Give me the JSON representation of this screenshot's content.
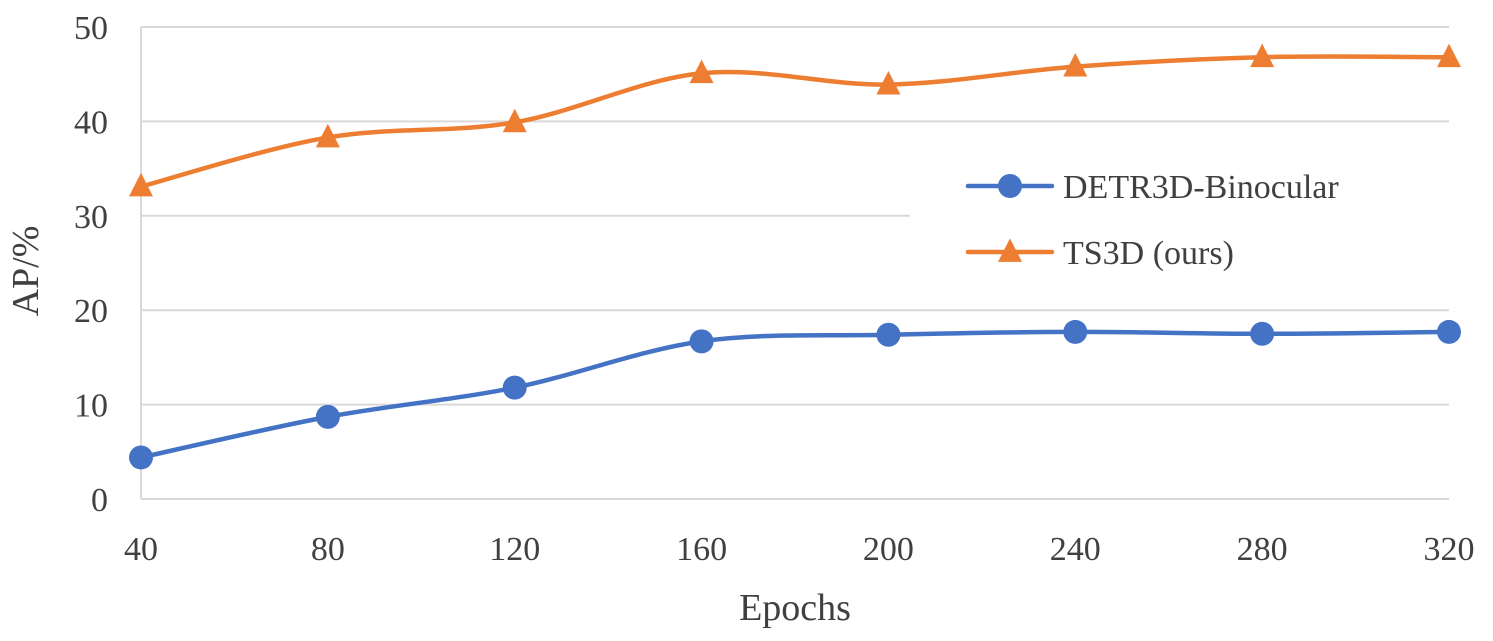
{
  "chart_data": {
    "type": "line",
    "title": "",
    "xlabel": "Epochs",
    "ylabel": "AP/%",
    "x": [
      40,
      80,
      120,
      160,
      200,
      240,
      280,
      320
    ],
    "xlim": [
      40,
      320
    ],
    "ylim": [
      0,
      50
    ],
    "yticks": [
      0,
      10,
      20,
      30,
      40,
      50
    ],
    "grid": true,
    "smooth": true,
    "legend_position": "right",
    "series": [
      {
        "name": "DETR3D-Binocular",
        "color": "#4472c4",
        "marker": "circle",
        "values": [
          4.4,
          8.7,
          11.8,
          16.7,
          17.4,
          17.7,
          17.5,
          17.7
        ]
      },
      {
        "name": "TS3D (ours)",
        "color": "#ed7d31",
        "marker": "triangle",
        "values": [
          33.1,
          38.3,
          39.9,
          45.1,
          43.9,
          45.8,
          46.8,
          46.8
        ]
      }
    ]
  }
}
